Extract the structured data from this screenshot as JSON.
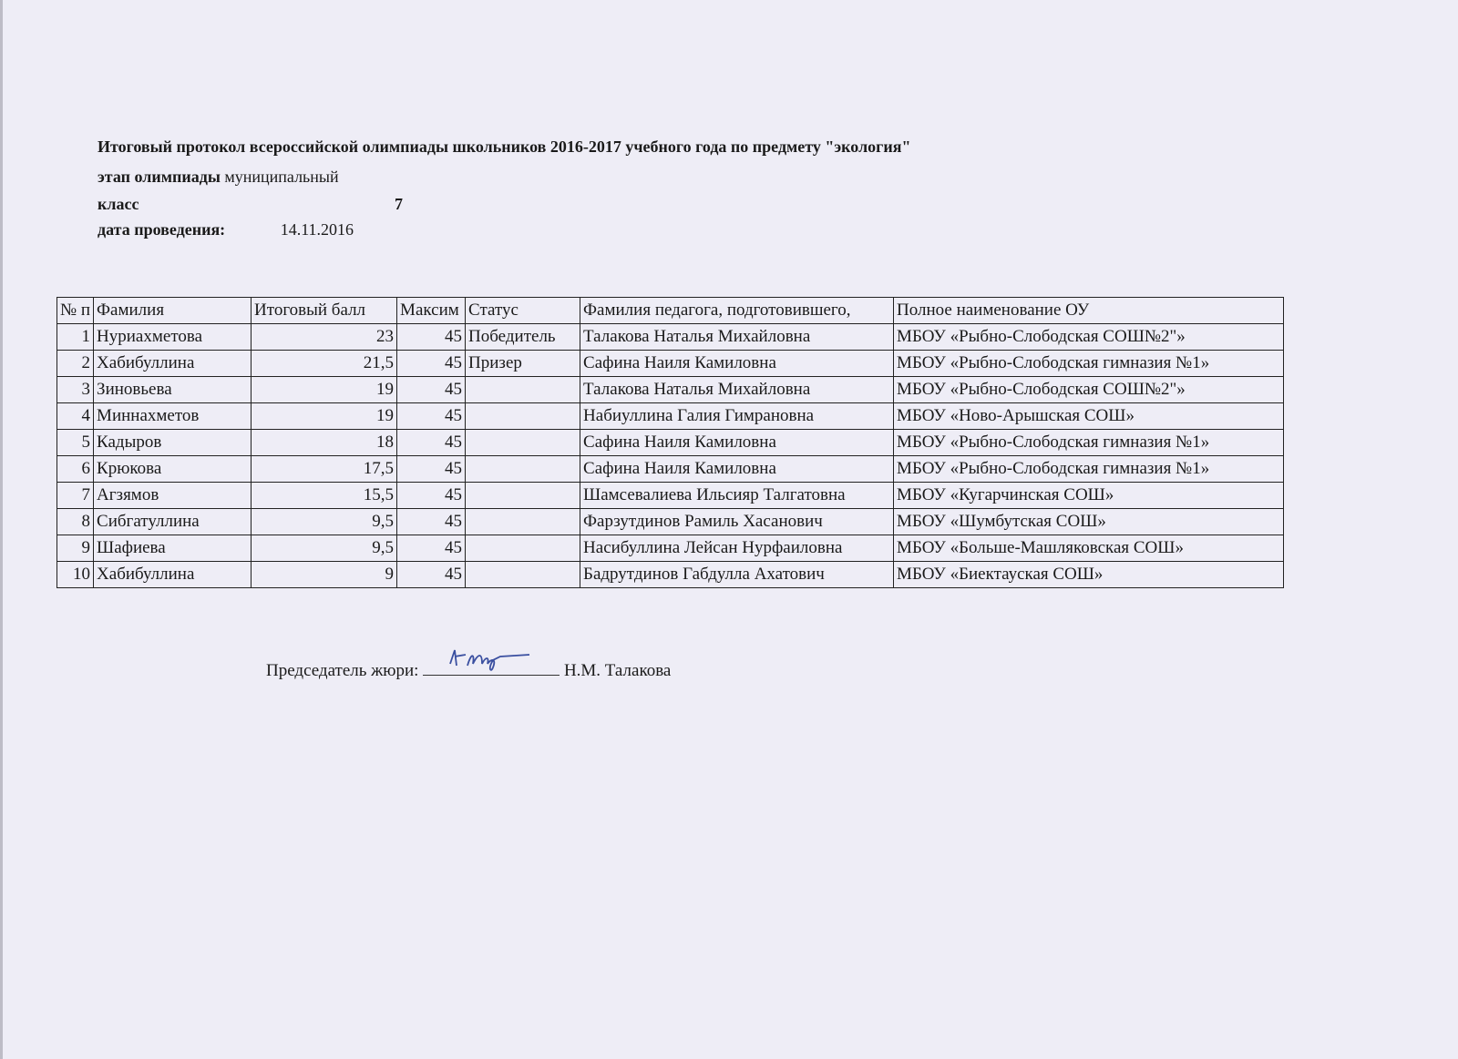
{
  "header": {
    "title": "Итоговый протокол всероссийской  олимпиады  школьников 2016-2017 учебного года  по предмету \"экология\"",
    "stage_label": "этап олимпиады",
    "stage_value": "муниципальный",
    "class_label": "класс",
    "class_value": "7",
    "date_label": "дата проведения:",
    "date_value": "14.11.2016"
  },
  "table": {
    "columns": [
      "№ п",
      "Фамилия",
      "Итоговый балл",
      "Максим",
      "Статус",
      "Фамилия педагога, подготовившего,",
      "Полное наименование ОУ"
    ],
    "rows": [
      [
        "1",
        "Нуриахметова",
        "23",
        "45",
        "Победитель",
        "Талакова Наталья Михайловна",
        "МБОУ «Рыбно-Слободская СОШ№2\"»"
      ],
      [
        "2",
        "Хабибуллина",
        "21,5",
        "45",
        "Призер",
        "Сафина Наиля Камиловна",
        "МБОУ «Рыбно-Слободская гимназия №1»"
      ],
      [
        "3",
        "Зиновьева",
        "19",
        "45",
        "",
        "Талакова Наталья Михайловна",
        "МБОУ «Рыбно-Слободская СОШ№2\"»"
      ],
      [
        "4",
        "Миннахметов",
        "19",
        "45",
        "",
        "Набиуллина Галия Гимрановна",
        "МБОУ «Ново-Арышская СОШ»"
      ],
      [
        "5",
        "Кадыров",
        "18",
        "45",
        "",
        "Сафина Наиля Камиловна",
        "МБОУ «Рыбно-Слободская гимназия №1»"
      ],
      [
        "6",
        "Крюкова",
        "17,5",
        "45",
        "",
        "Сафина Наиля Камиловна",
        "МБОУ «Рыбно-Слободская гимназия №1»"
      ],
      [
        "7",
        "Агзямов",
        "15,5",
        "45",
        "",
        "Шамсевалиева Ильсияр Талгатовна",
        "МБОУ «Кугарчинская СОШ»"
      ],
      [
        "8",
        "Сибгатуллина",
        "9,5",
        "45",
        "",
        "Фарзутдинов Рамиль Хасанович",
        "МБОУ «Шумбутская СОШ»"
      ],
      [
        "9",
        "Шафиева",
        "9,5",
        "45",
        "",
        "Насибуллина Лейсан Нурфаиловна",
        "МБОУ «Больше-Машляковская СОШ»"
      ],
      [
        "10",
        "Хабибуллина",
        "9",
        "45",
        "",
        "Бадрутдинов Габдулла  Ахатович",
        "МБОУ «Биектауская СОШ»"
      ]
    ]
  },
  "footer": {
    "chair_label": "Председатель жюри:",
    "chair_name": "Н.М. Талакова"
  }
}
